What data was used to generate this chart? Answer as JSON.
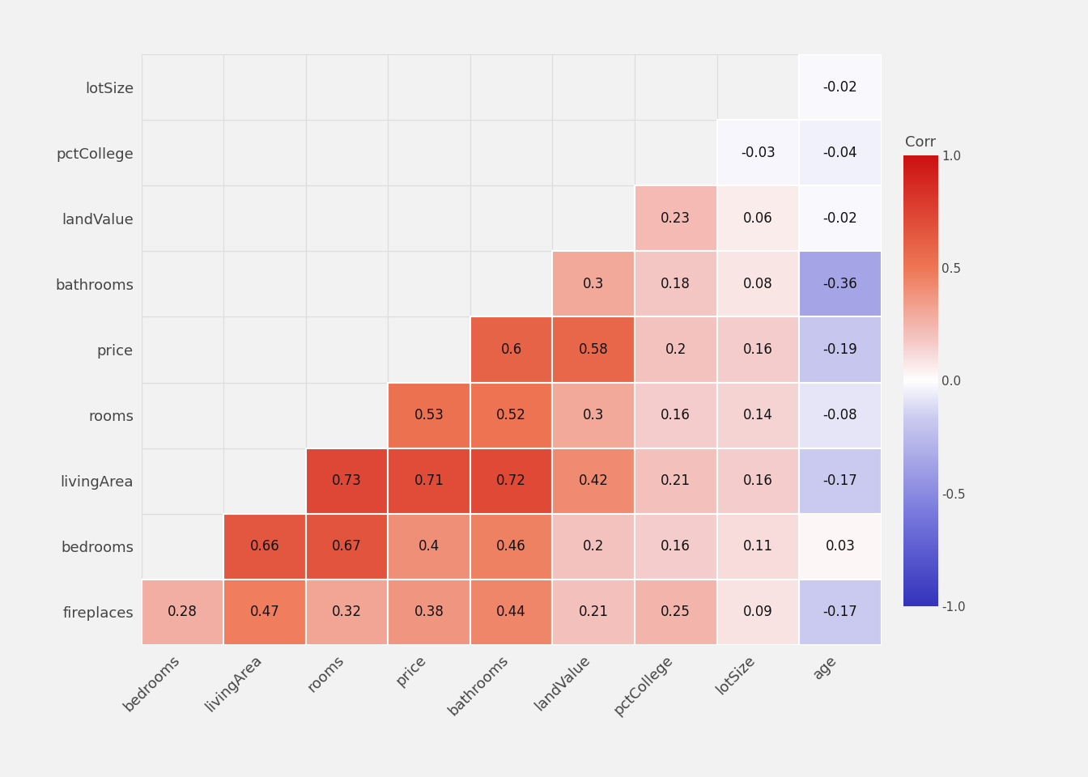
{
  "row_labels_top_to_bottom": [
    "lotSize",
    "pctCollege",
    "landValue",
    "bathrooms",
    "price",
    "rooms",
    "livingArea",
    "bedrooms",
    "fireplaces"
  ],
  "col_labels": [
    "bedrooms",
    "livingArea",
    "rooms",
    "price",
    "bathrooms",
    "landValue",
    "pctCollege",
    "lotSize",
    "age"
  ],
  "corr_data": [
    {
      "row": 8,
      "col": 8,
      "val": -0.02
    },
    {
      "row": 7,
      "col": 7,
      "val": -0.03
    },
    {
      "row": 7,
      "col": 8,
      "val": -0.04
    },
    {
      "row": 6,
      "col": 6,
      "val": 0.23
    },
    {
      "row": 6,
      "col": 7,
      "val": 0.06
    },
    {
      "row": 6,
      "col": 8,
      "val": -0.02
    },
    {
      "row": 5,
      "col": 5,
      "val": 0.3
    },
    {
      "row": 5,
      "col": 6,
      "val": 0.18
    },
    {
      "row": 5,
      "col": 7,
      "val": 0.08
    },
    {
      "row": 5,
      "col": 8,
      "val": -0.36
    },
    {
      "row": 4,
      "col": 4,
      "val": 0.6
    },
    {
      "row": 4,
      "col": 5,
      "val": 0.58
    },
    {
      "row": 4,
      "col": 6,
      "val": 0.2
    },
    {
      "row": 4,
      "col": 7,
      "val": 0.16
    },
    {
      "row": 4,
      "col": 8,
      "val": -0.19
    },
    {
      "row": 3,
      "col": 3,
      "val": 0.53
    },
    {
      "row": 3,
      "col": 4,
      "val": 0.52
    },
    {
      "row": 3,
      "col": 5,
      "val": 0.3
    },
    {
      "row": 3,
      "col": 6,
      "val": 0.16
    },
    {
      "row": 3,
      "col": 7,
      "val": 0.14
    },
    {
      "row": 3,
      "col": 8,
      "val": -0.08
    },
    {
      "row": 2,
      "col": 2,
      "val": 0.73
    },
    {
      "row": 2,
      "col": 3,
      "val": 0.71
    },
    {
      "row": 2,
      "col": 4,
      "val": 0.72
    },
    {
      "row": 2,
      "col": 5,
      "val": 0.42
    },
    {
      "row": 2,
      "col": 6,
      "val": 0.21
    },
    {
      "row": 2,
      "col": 7,
      "val": 0.16
    },
    {
      "row": 2,
      "col": 8,
      "val": -0.17
    },
    {
      "row": 1,
      "col": 1,
      "val": 0.66
    },
    {
      "row": 1,
      "col": 2,
      "val": 0.67
    },
    {
      "row": 1,
      "col": 3,
      "val": 0.4
    },
    {
      "row": 1,
      "col": 4,
      "val": 0.46
    },
    {
      "row": 1,
      "col": 5,
      "val": 0.2
    },
    {
      "row": 1,
      "col": 6,
      "val": 0.16
    },
    {
      "row": 1,
      "col": 7,
      "val": 0.11
    },
    {
      "row": 1,
      "col": 8,
      "val": 0.03
    },
    {
      "row": 0,
      "col": 0,
      "val": 0.28
    },
    {
      "row": 0,
      "col": 1,
      "val": 0.47
    },
    {
      "row": 0,
      "col": 2,
      "val": 0.32
    },
    {
      "row": 0,
      "col": 3,
      "val": 0.38
    },
    {
      "row": 0,
      "col": 4,
      "val": 0.44
    },
    {
      "row": 0,
      "col": 5,
      "val": 0.21
    },
    {
      "row": 0,
      "col": 6,
      "val": 0.25
    },
    {
      "row": 0,
      "col": 7,
      "val": 0.09
    },
    {
      "row": 0,
      "col": 8,
      "val": -0.17
    }
  ],
  "background_color": "#f2f2f2",
  "cell_edge_color": "#ffffff",
  "empty_cell_color": "#f2f2f2",
  "colorbar_title": "Corr",
  "vmin": -1.0,
  "vmax": 1.0,
  "colorbar_ticks": [
    1.0,
    0.5,
    0.0,
    -0.5,
    -1.0
  ],
  "colorbar_ticklabels": [
    "1.0",
    "0.5",
    "0.0",
    "-0.5",
    "-1.0"
  ],
  "text_fontsize": 12,
  "label_fontsize": 13,
  "n": 9
}
